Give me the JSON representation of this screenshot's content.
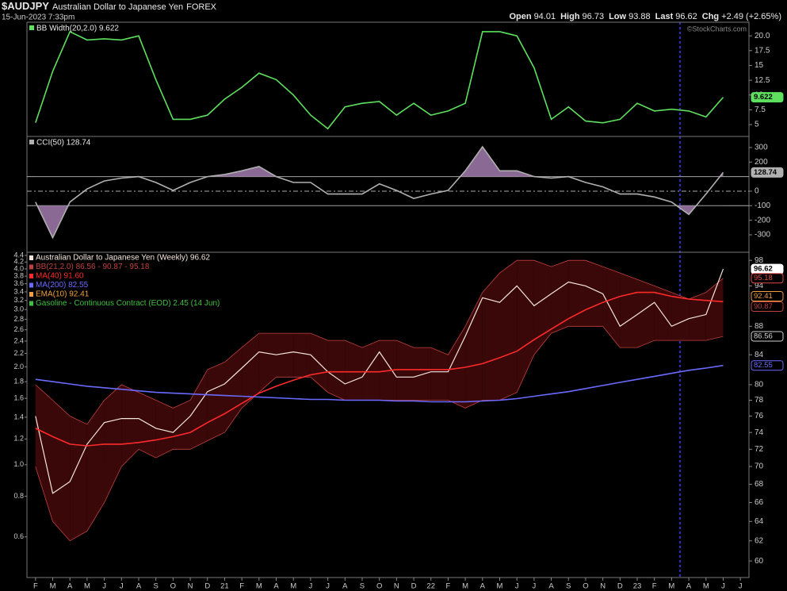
{
  "header": {
    "symbol": "$AUDJPY",
    "name": "Australian Dollar to Japanese Yen",
    "exchange": "FOREX",
    "date": "15-Jun-2023 7:33pm",
    "quote": [
      [
        "Open",
        "94.01"
      ],
      [
        "High",
        "96.73"
      ],
      [
        "Low",
        "93.88"
      ],
      [
        "Last",
        "96.62"
      ],
      [
        "Chg",
        "+2.49 (+2.65%)"
      ]
    ],
    "credit": "©StockCharts.com"
  },
  "chart_data": [
    {
      "type": "line",
      "title": "BB Width(20,2.0) 9.622",
      "ylim": [
        3.0,
        22.3
      ],
      "yticks": [
        {
          "value": 20,
          "label": "20.0"
        },
        17.5,
        15,
        12.5,
        10,
        7.5,
        5
      ],
      "series": [
        {
          "name": "BB Width",
          "color": "#5ee05e",
          "values": [
            5.3,
            14,
            20.7,
            19.3,
            19.5,
            19.3,
            20,
            12.6,
            5.9,
            5.9,
            6.6,
            9.3,
            11.3,
            13.7,
            12.6,
            10,
            6.6,
            4.3,
            8,
            8.6,
            8.9,
            6.6,
            8.6,
            6.6,
            7.3,
            8.6,
            20.7,
            20.7,
            20,
            14.6,
            5.9,
            8,
            5.6,
            5.3,
            5.9,
            8.6,
            7.3,
            7.6,
            7.3,
            6.3,
            9.622,
            null
          ]
        }
      ],
      "last_labels": [
        {
          "value": 9.622,
          "color": "#5ee05e"
        }
      ]
    },
    {
      "type": "line",
      "title": "CCI(50) 128.74",
      "ylim": [
        -420,
        376
      ],
      "yticks": [
        300,
        200,
        0,
        -100,
        -200,
        -300
      ],
      "hlines": [
        {
          "value": 100,
          "style": "solid"
        },
        {
          "value": -100,
          "style": "solid"
        },
        {
          "value": 0,
          "style": "dashdot"
        }
      ],
      "series": [
        {
          "name": "CCI",
          "color": "#b0b0b0",
          "fill": "#8a6a94",
          "values": [
            -75,
            -320,
            -75,
            15,
            70,
            90,
            100,
            60,
            5,
            60,
            100,
            115,
            140,
            170,
            100,
            60,
            60,
            -20,
            -20,
            -20,
            50,
            5,
            -50,
            -20,
            5,
            140,
            305,
            140,
            140,
            100,
            90,
            100,
            60,
            30,
            -20,
            -20,
            -40,
            -75,
            -160,
            -20,
            128.74,
            null
          ]
        }
      ],
      "last_labels": [
        {
          "value": 128.74,
          "color": "#b0b0b0"
        }
      ]
    },
    {
      "type": "line",
      "log": true,
      "ylim": [
        58.4,
        99.3
      ],
      "yticks": [
        98,
        94,
        88,
        84,
        80,
        78,
        76,
        74,
        72,
        70,
        68,
        66,
        64,
        62,
        60
      ],
      "y2log": true,
      "y2lim": [
        0.45,
        4.5
      ],
      "y2ticks": [
        4.4,
        4.2,
        {
          "value": 4,
          "label": "4.0"
        },
        3.8,
        3.6,
        3.4,
        3.2,
        {
          "value": 3,
          "label": "3.0"
        },
        2.8,
        2.6,
        2.4,
        2.2,
        {
          "value": 2,
          "label": "2.0"
        },
        1.8,
        1.6,
        1.4,
        1.2,
        {
          "value": 1,
          "label": "1.0"
        },
        0.8,
        0.6
      ],
      "categories": [
        "F",
        "M",
        "A",
        "M",
        "J",
        "J",
        "A",
        "S",
        "O",
        "N",
        "D",
        "21",
        "F",
        "M",
        "A",
        "M",
        "J",
        "J",
        "A",
        "S",
        "O",
        "N",
        "D",
        "22",
        "F",
        "M",
        "A",
        "M",
        "J",
        "J",
        "A",
        "S",
        "O",
        "N",
        "D",
        "23",
        "F",
        "M",
        "A",
        "M",
        "J",
        "J"
      ],
      "band": {
        "name": "BB(21,2.0) 86.56 - 90.87 - 95.18",
        "color": "#c04040",
        "fill": "#3a0808",
        "upper": [
          80,
          78,
          76,
          75,
          78,
          80,
          79,
          78,
          77,
          78,
          82,
          83,
          85,
          87,
          87,
          87,
          87,
          86,
          86,
          85,
          86,
          86,
          85,
          85,
          84,
          88,
          93,
          96,
          98,
          98,
          97,
          98,
          98,
          97,
          96,
          95,
          94,
          93,
          92,
          93,
          95.18,
          null
        ],
        "lower": [
          70,
          64,
          62,
          63,
          66,
          70,
          72,
          71,
          72,
          72,
          73,
          74,
          77,
          79,
          81,
          81,
          81,
          79,
          78,
          78,
          78,
          78,
          78,
          78,
          78,
          77,
          78,
          78,
          79,
          84,
          87,
          88,
          88,
          88,
          85,
          85,
          86,
          86,
          86,
          86,
          86.56,
          null
        ]
      },
      "series": [
        {
          "name": "Australian Dollar to Japanese Yen (Weekly) 96.62",
          "color": "#f4e6de",
          "values": [
            76,
            67,
            68.3,
            72.6,
            75.2,
            75.7,
            75.7,
            74.5,
            74,
            76,
            79.1,
            80.1,
            82.2,
            84.4,
            84,
            84.4,
            84,
            81.7,
            80.1,
            81,
            84.4,
            81,
            81,
            81.7,
            81.7,
            86.6,
            92.2,
            91.5,
            94,
            91,
            92.8,
            94.6,
            94,
            92.8,
            88,
            89.7,
            91.5,
            88,
            89.1,
            89.7,
            96.62,
            null
          ]
        },
        {
          "name": "MA(40) 91.60",
          "color": "#ff2a2a",
          "values": [
            74.5,
            73.5,
            72.6,
            72.4,
            72.6,
            72.6,
            72.8,
            73.1,
            73.5,
            74,
            75.2,
            76.3,
            77.6,
            78.9,
            79.8,
            80.6,
            81.3,
            81.7,
            81.7,
            81.7,
            81.7,
            82,
            82,
            82,
            82,
            82.3,
            82.8,
            83.6,
            84.5,
            86.1,
            87.6,
            89.1,
            90.4,
            91.5,
            92.4,
            93,
            93,
            92.4,
            92,
            91.8,
            91.6,
            null
          ]
        },
        {
          "name": "MA(200) 82.55",
          "color": "#6a6aff",
          "values": [
            80.7,
            80.4,
            80.1,
            79.8,
            79.6,
            79.4,
            79.2,
            79,
            78.9,
            78.8,
            78.7,
            78.6,
            78.5,
            78.4,
            78.3,
            78.2,
            78.1,
            78.1,
            78,
            78,
            78,
            77.9,
            77.9,
            77.8,
            77.8,
            77.8,
            77.9,
            78,
            78.2,
            78.5,
            78.8,
            79.1,
            79.5,
            79.9,
            80.3,
            80.7,
            81.1,
            81.5,
            81.9,
            82.2,
            82.55,
            null
          ]
        }
      ],
      "legend_extra": [
        {
          "name": "EMA(10) 92.41",
          "color": "#f0a040"
        },
        {
          "name": "Gasoline - Continuous Contract (EOD) 2.45 (14 Jun)",
          "color": "#40c040"
        }
      ],
      "last_labels": [
        {
          "value": 96.62,
          "color": "#ffffff"
        },
        {
          "value": 95.18,
          "color": "#e04848"
        },
        {
          "value": 92.41,
          "color": "#f0a040"
        },
        {
          "value": 90.87,
          "color": "#c04040"
        },
        {
          "value": 86.56,
          "color": "#d0d0d0"
        },
        {
          "value": 82.55,
          "color": "#6a6aff"
        }
      ]
    }
  ]
}
